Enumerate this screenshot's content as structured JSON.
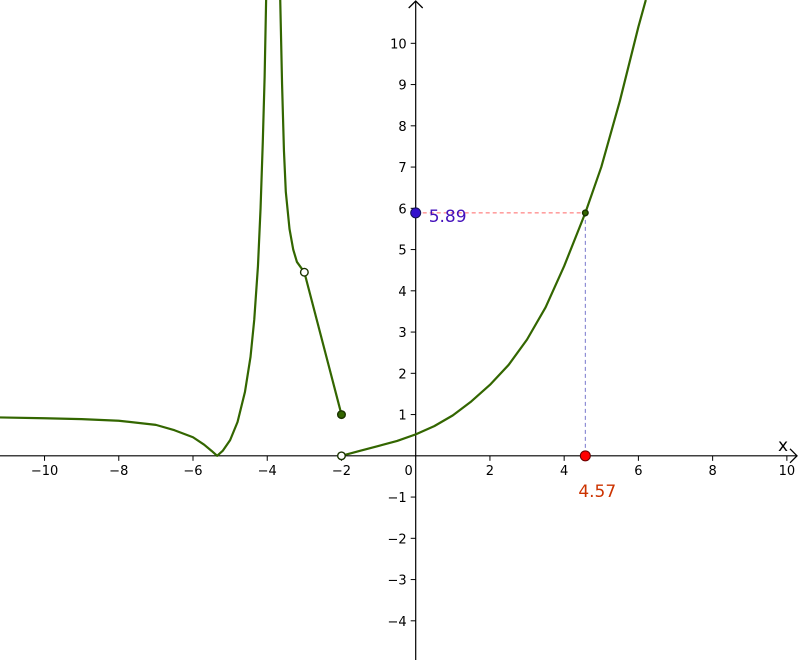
{
  "axes": {
    "x_name": "x",
    "y_name": ""
  },
  "colors": {
    "curve": "#336600",
    "x_point": "#ff0000",
    "y_point": "#3311cc",
    "x_label": "#cc3300",
    "y_label": "#4411bb",
    "h_guide": "#ff6666",
    "v_guide": "#7777cc"
  },
  "readout": {
    "x_value": "4.57",
    "y_value": "5.89"
  },
  "chart_data": {
    "type": "line",
    "title": "",
    "xlabel": "x",
    "ylabel": "",
    "xlim": [
      -11.2,
      10.3
    ],
    "ylim": [
      -4.95,
      11.05
    ],
    "grid": false,
    "x_ticks": [
      {
        "value": -10,
        "label": "−10"
      },
      {
        "value": -8,
        "label": "−8"
      },
      {
        "value": -6,
        "label": "−6"
      },
      {
        "value": -4,
        "label": "−4"
      },
      {
        "value": -2,
        "label": "−2"
      },
      {
        "value": 2,
        "label": "2"
      },
      {
        "value": 4,
        "label": "4"
      },
      {
        "value": 6,
        "label": "6"
      },
      {
        "value": 8,
        "label": "8"
      },
      {
        "value": 10,
        "label": "10"
      }
    ],
    "origin_label": "0",
    "y_ticks": [
      {
        "value": -4,
        "label": "−4"
      },
      {
        "value": -3,
        "label": "−3"
      },
      {
        "value": -2,
        "label": "−2"
      },
      {
        "value": -1,
        "label": "−1"
      },
      {
        "value": 1,
        "label": "1"
      },
      {
        "value": 2,
        "label": "2"
      },
      {
        "value": 3,
        "label": "3"
      },
      {
        "value": 4,
        "label": "4"
      },
      {
        "value": 5,
        "label": "5"
      },
      {
        "value": 6,
        "label": "6"
      },
      {
        "value": 7,
        "label": "7"
      },
      {
        "value": 8,
        "label": "8"
      },
      {
        "value": 9,
        "label": "9"
      },
      {
        "value": 10,
        "label": "10"
      }
    ],
    "series": [
      {
        "piece": "left-branch",
        "points": [
          [
            -11.2,
            0.93
          ],
          [
            -10,
            0.91
          ],
          [
            -9,
            0.89
          ],
          [
            -8,
            0.85
          ],
          [
            -7,
            0.75
          ],
          [
            -6.5,
            0.62
          ],
          [
            -6,
            0.45
          ],
          [
            -5.7,
            0.27
          ],
          [
            -5.5,
            0.12
          ],
          [
            -5.35,
            0
          ],
          [
            -5.2,
            0.12
          ],
          [
            -5,
            0.38
          ],
          [
            -4.8,
            0.82
          ],
          [
            -4.6,
            1.55
          ],
          [
            -4.45,
            2.4
          ],
          [
            -4.35,
            3.3
          ],
          [
            -4.25,
            4.6
          ],
          [
            -4.18,
            6.0
          ],
          [
            -4.12,
            7.6
          ],
          [
            -4.07,
            9.2
          ],
          [
            -4.03,
            11.05
          ]
        ]
      },
      {
        "piece": "middle-branch",
        "points": [
          [
            -3.65,
            11.05
          ],
          [
            -3.6,
            9.0
          ],
          [
            -3.55,
            7.4
          ],
          [
            -3.5,
            6.4
          ],
          [
            -3.4,
            5.5
          ],
          [
            -3.3,
            5.0
          ],
          [
            -3.2,
            4.7
          ],
          [
            -3.0,
            4.45
          ]
        ]
      },
      {
        "piece": "segment",
        "points": [
          [
            -3.0,
            4.45
          ],
          [
            -2.0,
            1.0
          ]
        ]
      },
      {
        "piece": "right-branch",
        "points": [
          [
            -2.0,
            0
          ],
          [
            -1.5,
            0.12
          ],
          [
            -1,
            0.24
          ],
          [
            -0.5,
            0.36
          ],
          [
            0,
            0.52
          ],
          [
            0.5,
            0.72
          ],
          [
            1,
            0.98
          ],
          [
            1.5,
            1.32
          ],
          [
            2,
            1.72
          ],
          [
            2.5,
            2.2
          ],
          [
            3,
            2.82
          ],
          [
            3.5,
            3.6
          ],
          [
            4,
            4.6
          ],
          [
            4.57,
            5.89
          ],
          [
            5,
            7.0
          ],
          [
            5.5,
            8.6
          ],
          [
            6,
            10.4
          ],
          [
            6.2,
            11.05
          ]
        ]
      }
    ],
    "markers": [
      {
        "name": "open-point-upper",
        "x": -3.0,
        "y": 4.45,
        "fill": "open"
      },
      {
        "name": "closed-point-segment-end",
        "x": -2.0,
        "y": 1.0,
        "fill": "closed"
      },
      {
        "name": "open-point-axis",
        "x": -2.0,
        "y": 0,
        "fill": "open"
      },
      {
        "name": "curve-point",
        "x": 4.57,
        "y": 5.89,
        "fill": "closed"
      }
    ],
    "highlight": {
      "x": 4.57,
      "y": 5.89
    }
  }
}
